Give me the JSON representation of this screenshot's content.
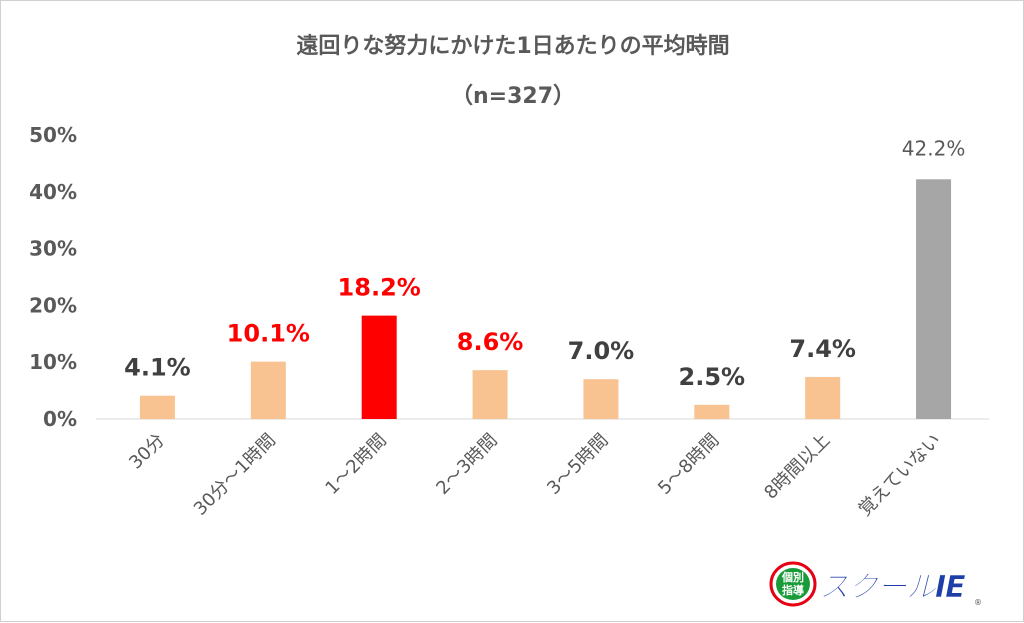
{
  "chart_data": {
    "type": "bar",
    "title": "遠回りな努力にかけた1日あたりの平均時間",
    "subtitle": "（n=327）",
    "categories": [
      "30分",
      "30分〜1時間",
      "1〜2時間",
      "2〜3時間",
      "3〜5時間",
      "5〜8時間",
      "8時間以上",
      "覚えていない"
    ],
    "values": [
      4.1,
      10.1,
      18.2,
      8.6,
      7.0,
      2.5,
      7.4,
      42.2
    ],
    "data_labels": [
      "4.1%",
      "10.1%",
      "18.2%",
      "8.6%",
      "7.0%",
      "2.5%",
      "7.4%",
      "42.2%"
    ],
    "bar_colors": [
      "#F8C291",
      "#F8C291",
      "#FF0000",
      "#F8C291",
      "#F8C291",
      "#F8C291",
      "#F8C291",
      "#A6A6A6"
    ],
    "label_colors": [
      "#404040",
      "#FF0000",
      "#FF0000",
      "#FF0000",
      "#404040",
      "#404040",
      "#404040",
      "#595959"
    ],
    "y_ticks": [
      "0%",
      "10%",
      "20%",
      "30%",
      "40%",
      "50%"
    ],
    "ylim": [
      0,
      50
    ],
    "xlabel": "",
    "ylabel": "",
    "grid": false
  },
  "logo": {
    "badge_text_top": "個別",
    "badge_text_bottom": "指導",
    "brand": "スクールIE",
    "registered": "®",
    "brand_color": "#1f3fa8",
    "badge_color": "#e60012"
  }
}
